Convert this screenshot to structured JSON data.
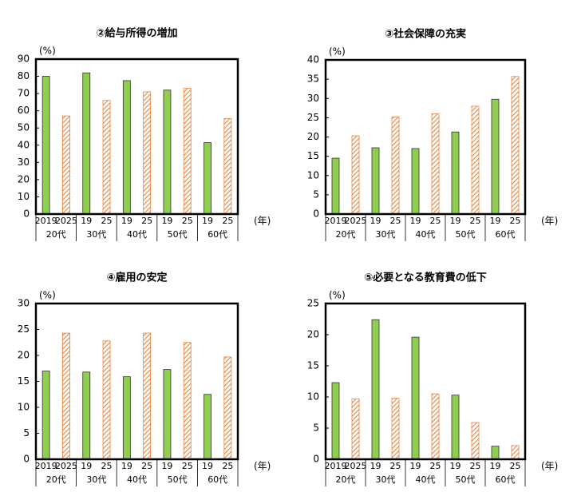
{
  "chart_data": [
    {
      "type": "bar",
      "title": "②給与所得の増加",
      "y_unit": "(%)",
      "x_unit": "(年)",
      "x_labels": [
        "2019",
        "2025",
        "19",
        "25",
        "19",
        "25",
        "19",
        "25",
        "19",
        "25"
      ],
      "groups": [
        "20代",
        "30代",
        "40代",
        "50代",
        "60代"
      ],
      "series": [
        {
          "color": "#8fce4e",
          "values": [
            80,
            82,
            77.5,
            72,
            41.5
          ]
        },
        {
          "color": "#e8833a",
          "hatch": true,
          "values": [
            57,
            66,
            71,
            73,
            55.5
          ]
        }
      ],
      "ylim": [
        0,
        90
      ],
      "yticks": [
        0,
        10,
        20,
        30,
        40,
        50,
        60,
        70,
        80,
        90
      ]
    },
    {
      "type": "bar",
      "title": "③社会保障の充実",
      "y_unit": "(%)",
      "x_unit": "(年)",
      "x_labels": [
        "2019",
        "2025",
        "19",
        "25",
        "19",
        "25",
        "19",
        "25",
        "19",
        "25"
      ],
      "groups": [
        "20代",
        "30代",
        "40代",
        "50代",
        "60代"
      ],
      "series": [
        {
          "color": "#8fce4e",
          "values": [
            14.5,
            17.2,
            17,
            21.3,
            29.8
          ]
        },
        {
          "color": "#e8833a",
          "hatch": true,
          "values": [
            20.3,
            25.2,
            26,
            28,
            35.7
          ]
        }
      ],
      "ylim": [
        0,
        40
      ],
      "yticks": [
        0,
        5,
        10,
        15,
        20,
        25,
        30,
        35,
        40
      ]
    },
    {
      "type": "bar",
      "title": "④雇用の安定",
      "y_unit": "(%)",
      "x_unit": "(年)",
      "x_labels": [
        "2019",
        "2025",
        "19",
        "25",
        "19",
        "25",
        "19",
        "25",
        "19",
        "25"
      ],
      "groups": [
        "20代",
        "30代",
        "40代",
        "50代",
        "60代"
      ],
      "series": [
        {
          "color": "#8fce4e",
          "values": [
            17,
            16.8,
            15.9,
            17.3,
            12.5
          ]
        },
        {
          "color": "#e8833a",
          "hatch": true,
          "values": [
            24.3,
            22.8,
            24.3,
            22.5,
            19.7
          ]
        }
      ],
      "ylim": [
        0,
        30
      ],
      "yticks": [
        0,
        5,
        10,
        15,
        20,
        25,
        30
      ]
    },
    {
      "type": "bar",
      "title": "⑤必要となる教育費の低下",
      "y_unit": "(%)",
      "x_unit": "(年)",
      "x_labels": [
        "2019",
        "2025",
        "19",
        "25",
        "19",
        "25",
        "19",
        "25",
        "19",
        "25"
      ],
      "groups": [
        "20代",
        "30代",
        "40代",
        "50代",
        "60代"
      ],
      "series": [
        {
          "color": "#8fce4e",
          "values": [
            12.3,
            22.4,
            19.6,
            10.3,
            2.1
          ]
        },
        {
          "color": "#e8833a",
          "hatch": true,
          "values": [
            9.7,
            9.8,
            10.5,
            5.9,
            2.2
          ]
        }
      ],
      "ylim": [
        0,
        25
      ],
      "yticks": [
        0,
        5,
        10,
        15,
        20,
        25
      ]
    }
  ]
}
